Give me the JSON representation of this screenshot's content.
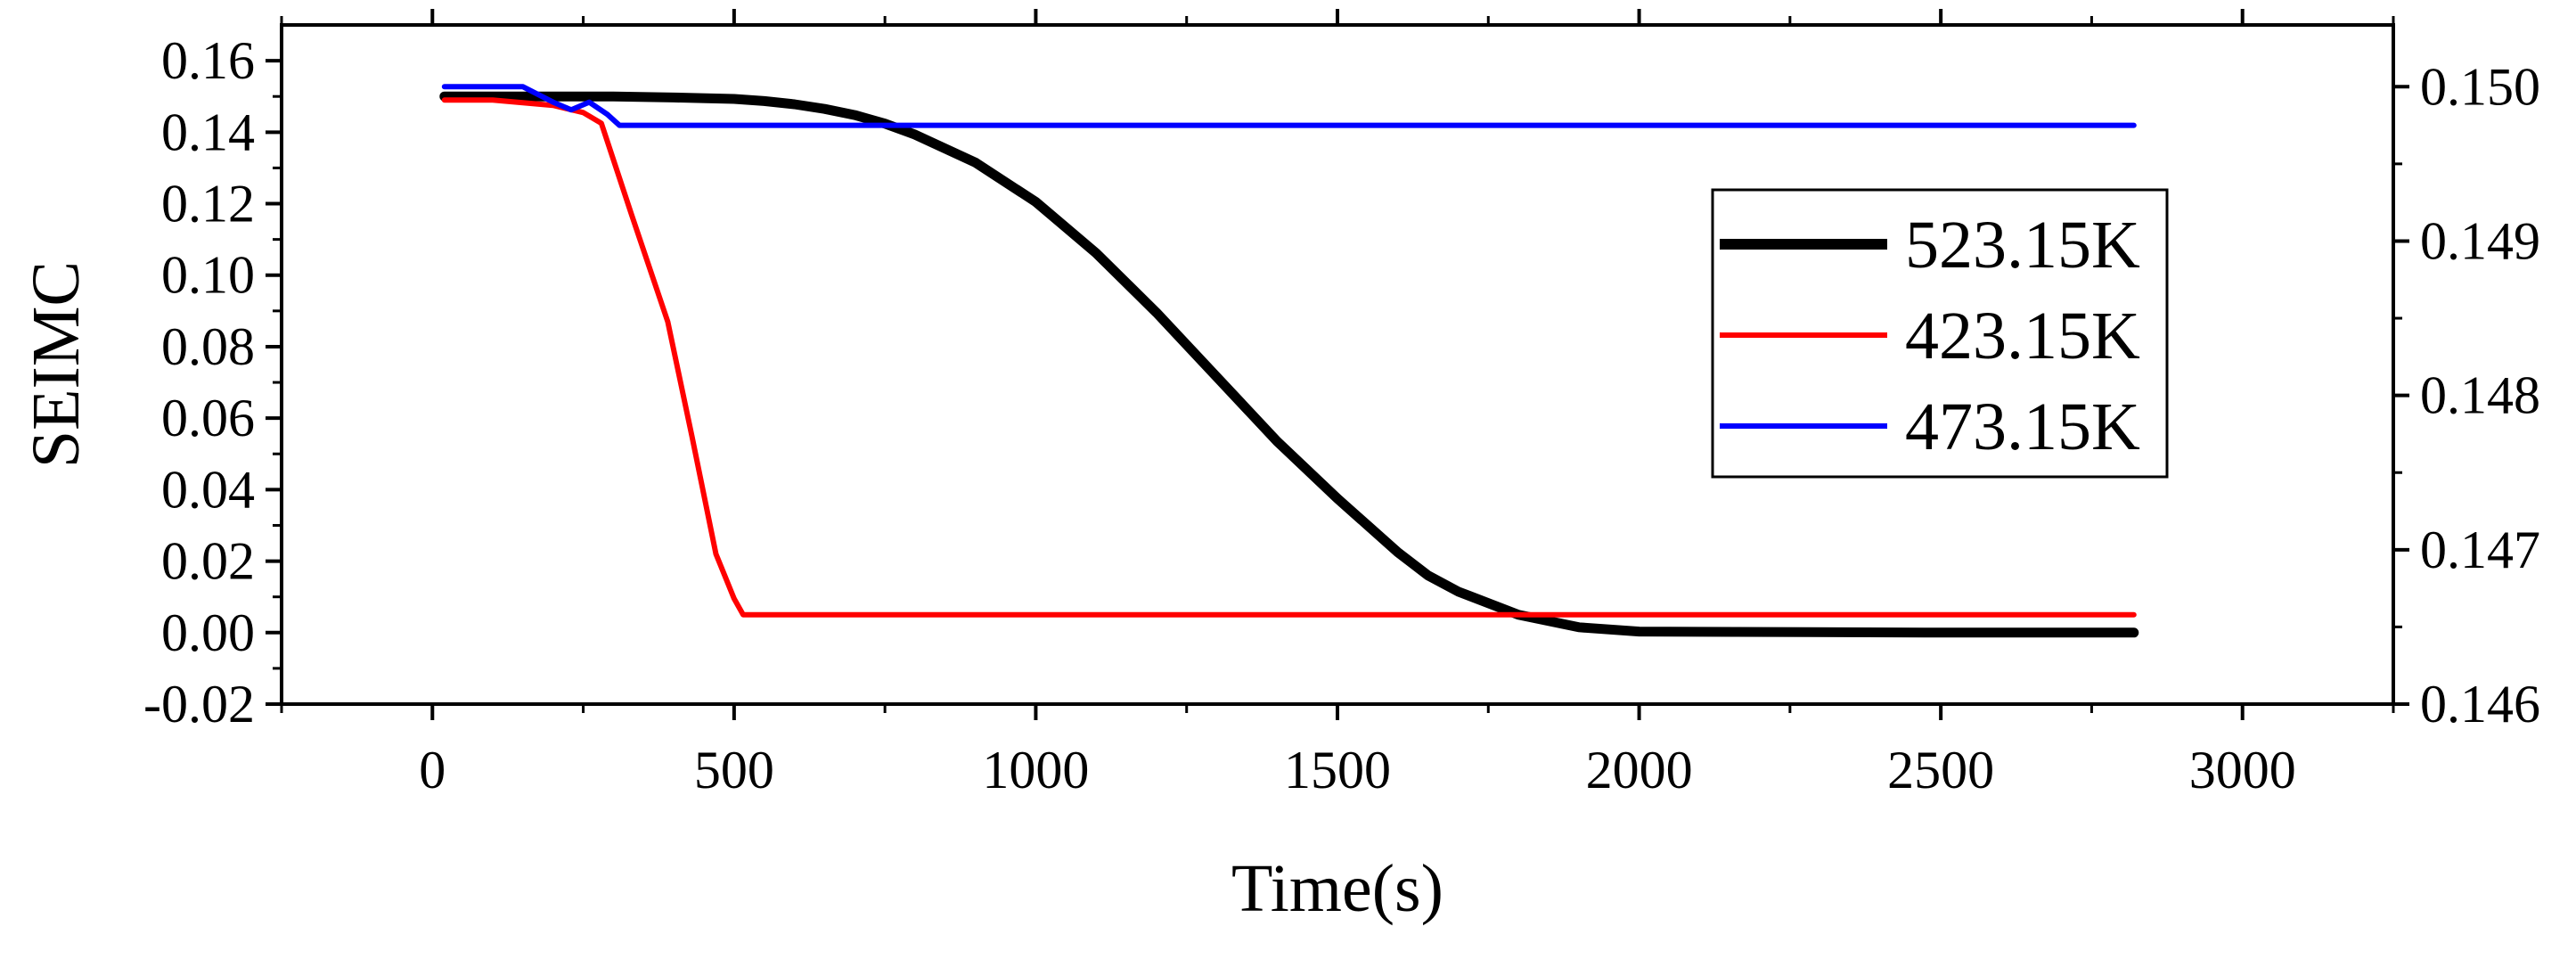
{
  "chart_data": {
    "type": "line",
    "title": "",
    "xlabel": "Time(s)",
    "ylabel": "SEIMC",
    "xlim": [
      -250,
      3250
    ],
    "ylim": [
      -0.02,
      0.17
    ],
    "y2lim": [
      0.146,
      0.1504
    ],
    "x_ticks": [
      0,
      500,
      1000,
      1500,
      2000,
      2500,
      3000
    ],
    "x_tick_labels": [
      "0",
      "500",
      "1000",
      "1500",
      "2000",
      "2500",
      "3000"
    ],
    "y_ticks": [
      -0.02,
      0.0,
      0.02,
      0.04,
      0.06,
      0.08,
      0.1,
      0.12,
      0.14,
      0.16
    ],
    "y_tick_labels": [
      "-0.02",
      "0.00",
      "0.02",
      "0.04",
      "0.06",
      "0.08",
      "0.10",
      "0.12",
      "0.14",
      "0.16"
    ],
    "y2_ticks": [
      0.146,
      0.147,
      0.148,
      0.149,
      0.15
    ],
    "y2_tick_labels": [
      "0.146",
      "0.147",
      "0.148",
      "0.149",
      "0.150"
    ],
    "legend_position": "center-right",
    "series": [
      {
        "name": "523.15K",
        "color": "#000000",
        "axis": "left",
        "width": "thick",
        "x": [
          20,
          100,
          200,
          300,
          400,
          500,
          550,
          600,
          650,
          700,
          750,
          800,
          900,
          1000,
          1100,
          1200,
          1300,
          1400,
          1500,
          1550,
          1600,
          1650,
          1700,
          1800,
          1900,
          2000,
          2500,
          2820
        ],
        "y": [
          0.15,
          0.15,
          0.15,
          0.15,
          0.1497,
          0.1493,
          0.1487,
          0.1478,
          0.1465,
          0.1448,
          0.1424,
          0.1393,
          0.1315,
          0.1205,
          0.1062,
          0.0895,
          0.0715,
          0.0535,
          0.0375,
          0.03,
          0.0225,
          0.016,
          0.0115,
          0.005,
          0.0015,
          0.0003,
          0.0,
          0.0
        ]
      },
      {
        "name": "423.15K",
        "color": "#ff0000",
        "axis": "left",
        "width": "thin",
        "x": [
          20,
          60,
          100,
          200,
          250,
          280,
          330,
          390,
          430,
          470,
          500,
          515,
          600,
          1000,
          1500,
          2000,
          2500,
          2820
        ],
        "y": [
          0.149,
          0.149,
          0.149,
          0.1475,
          0.1455,
          0.1425,
          0.117,
          0.087,
          0.055,
          0.022,
          0.0095,
          0.005,
          0.005,
          0.005,
          0.005,
          0.005,
          0.005,
          0.005
        ]
      },
      {
        "name": "473.15K",
        "color": "#0000ff",
        "axis": "right",
        "width": "thin",
        "x": [
          20,
          100,
          150,
          200,
          230,
          260,
          290,
          310,
          400,
          1000,
          1500,
          2000,
          2500,
          2820
        ],
        "y": [
          0.15,
          0.15,
          0.15,
          0.1499,
          0.14985,
          0.1499,
          0.14982,
          0.14975,
          0.14975,
          0.14975,
          0.14975,
          0.14975,
          0.14975,
          0.14975
        ]
      }
    ]
  }
}
